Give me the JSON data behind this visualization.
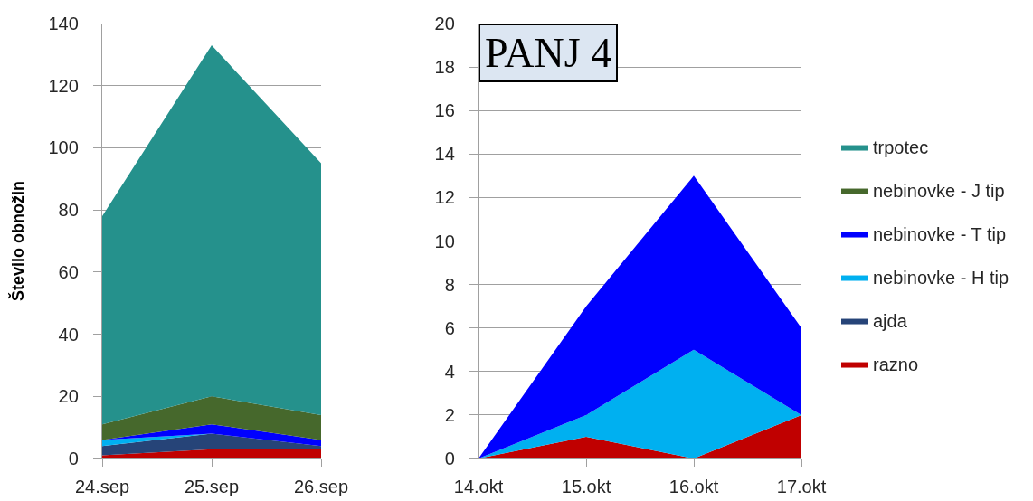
{
  "chart_data": [
    {
      "type": "area",
      "stacked": true,
      "ylabel": "Število obnožin",
      "categories": [
        "24.sep",
        "25.sep",
        "26.sep"
      ],
      "series": [
        {
          "name": "razno",
          "color": "#c00000",
          "values": [
            1,
            3,
            3
          ]
        },
        {
          "name": "ajda",
          "color": "#264478",
          "values": [
            3,
            5,
            1
          ]
        },
        {
          "name": "nebinovke - H tip",
          "color": "#00b0f0",
          "values": [
            2,
            0,
            0
          ]
        },
        {
          "name": "nebinovke - T tip",
          "color": "#0000ff",
          "values": [
            0,
            3,
            2
          ]
        },
        {
          "name": "nebinovke - J tip",
          "color": "#46682c",
          "values": [
            5,
            9,
            8
          ]
        },
        {
          "name": "trpotec",
          "color": "#25918c",
          "values": [
            67,
            113,
            81
          ]
        }
      ],
      "ylim": [
        0,
        140
      ],
      "yticks": [
        0,
        20,
        40,
        60,
        80,
        100,
        120,
        140
      ],
      "grid": "y",
      "legend": "right"
    },
    {
      "type": "area",
      "stacked": true,
      "annotations": [
        "PANJ 4"
      ],
      "categories": [
        "14.okt",
        "15.okt",
        "16.okt",
        "17.okt"
      ],
      "series": [
        {
          "color": "#c00000",
          "values": [
            0,
            1,
            0,
            2
          ]
        },
        {
          "color": "#00b0f0",
          "values": [
            0,
            1,
            5,
            0
          ]
        },
        {
          "color": "#0000ff",
          "values": [
            0,
            5,
            8,
            4
          ]
        }
      ],
      "ylim": [
        0,
        20
      ],
      "yticks": [
        0,
        2,
        4,
        6,
        8,
        10,
        12,
        14,
        16,
        18,
        20
      ],
      "grid": "y"
    }
  ]
}
